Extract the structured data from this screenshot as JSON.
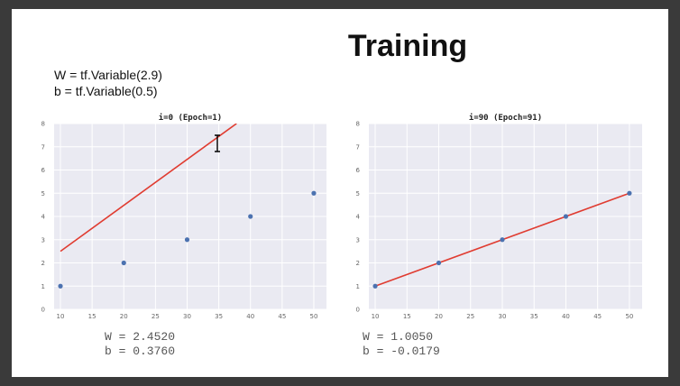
{
  "slide": {
    "title": "Training",
    "code_lines": [
      "W = tf.Variable(2.9)",
      "b = tf.Variable(0.5)"
    ]
  },
  "plots": [
    {
      "title": "i=0  (Epoch=1)",
      "result_lines": [
        "W = 2.4520",
        "b = 0.3760"
      ]
    },
    {
      "title": "i=90  (Epoch=91)",
      "result_lines": [
        "W = 1.0050",
        "b = -0.0179"
      ]
    }
  ],
  "colors": {
    "plot_background": "#eaeaf2",
    "grid": "#ffffff",
    "points": "#4c72b0",
    "line": "#e03c31"
  },
  "chart_data": [
    {
      "type": "scatter",
      "title": "i=0  (Epoch=1)",
      "xlabel": "",
      "ylabel": "",
      "x_ticks": [
        10,
        15,
        20,
        25,
        30,
        35,
        40,
        45,
        50
      ],
      "y_ticks": [
        0,
        1,
        2,
        3,
        4,
        5,
        6,
        7,
        8
      ],
      "xlim": [
        9,
        52
      ],
      "ylim": [
        0,
        8
      ],
      "grid": true,
      "points": {
        "x": [
          10,
          20,
          30,
          40,
          50
        ],
        "y": [
          1,
          2,
          3,
          4,
          5
        ]
      },
      "line": {
        "x": [
          10,
          37.8
        ],
        "y": [
          2.5,
          8
        ]
      }
    },
    {
      "type": "scatter",
      "title": "i=90  (Epoch=91)",
      "xlabel": "",
      "ylabel": "",
      "x_ticks": [
        10,
        15,
        20,
        25,
        30,
        35,
        40,
        45,
        50
      ],
      "y_ticks": [
        0,
        1,
        2,
        3,
        4,
        5,
        6,
        7,
        8
      ],
      "xlim": [
        9,
        52
      ],
      "ylim": [
        0,
        8
      ],
      "grid": true,
      "points": {
        "x": [
          10,
          20,
          30,
          40,
          50
        ],
        "y": [
          1,
          2,
          3,
          4,
          5
        ]
      },
      "line": {
        "x": [
          10,
          50
        ],
        "y": [
          1.0,
          5.0
        ]
      }
    }
  ]
}
